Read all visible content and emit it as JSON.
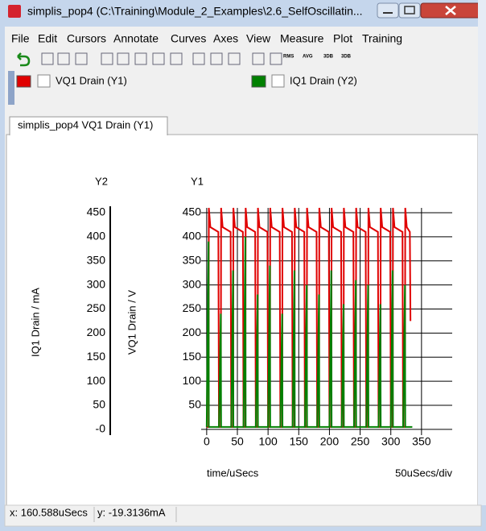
{
  "window": {
    "title": "simplis_pop4 (C:\\Training\\Module_2_Examples\\2.6_SelfOscillatin..."
  },
  "menu": [
    "File",
    "Edit",
    "Cursors",
    "Annotate",
    "Curves",
    "Axes",
    "View",
    "Measure",
    "Plot",
    "Training"
  ],
  "toolbar": [
    "RMS",
    "AVG",
    "3DB",
    "3DB"
  ],
  "tab": "simplis_pop4 VQ1 Drain (Y1)",
  "status": [
    "x: 160.588uSecs",
    "y: -19.3136mA"
  ],
  "chart_data": {
    "type": "line",
    "x_label": "time/uSecs",
    "x_scale_label": "50uSecs/div",
    "y_label": "VQ1 Drain / V",
    "y2_label": "IQ1 Drain / mA",
    "y_axis_name": "Y1",
    "y2_axis_name": "Y2",
    "x": [
      0,
      3,
      3.5,
      6,
      19,
      20,
      23,
      23.5,
      26,
      39,
      40,
      43,
      43.5,
      46,
      59,
      60,
      63,
      63.5,
      66,
      79,
      80,
      83,
      83.5,
      86,
      99,
      100,
      103,
      103.5,
      106,
      119,
      120,
      123,
      123.5,
      126,
      139,
      140,
      143,
      143.5,
      146,
      159,
      160,
      163,
      163.5,
      166,
      179,
      180,
      183,
      183.5,
      186,
      199,
      200,
      203,
      203.5,
      206,
      219,
      220,
      223,
      223.5,
      226,
      239,
      240,
      243,
      243.5,
      246,
      259,
      260,
      263,
      263.5,
      266,
      279,
      280,
      283,
      283.5,
      286,
      299,
      300,
      303,
      303.5,
      306,
      319,
      320,
      323,
      323.5,
      326,
      331,
      332,
      335
    ],
    "series": [
      {
        "name": "VQ1 Drain (Y1)",
        "color": "#e00000",
        "values": [
          5,
          5,
          460,
          420,
          410,
          5,
          5,
          460,
          420,
          410,
          5,
          5,
          460,
          420,
          410,
          5,
          5,
          460,
          420,
          410,
          5,
          5,
          460,
          420,
          410,
          5,
          5,
          460,
          420,
          410,
          5,
          5,
          460,
          420,
          410,
          5,
          5,
          460,
          420,
          410,
          5,
          5,
          460,
          420,
          410,
          5,
          5,
          460,
          420,
          410,
          5,
          5,
          460,
          420,
          410,
          5,
          5,
          460,
          420,
          410,
          5,
          5,
          460,
          420,
          410,
          5,
          5,
          460,
          420,
          410,
          5,
          5,
          460,
          420,
          410,
          5,
          5,
          460,
          420,
          410,
          5,
          5,
          460,
          420,
          410,
          225,
          null
        ]
      },
      {
        "name": "IQ1 Drain (Y2)",
        "color": "#008000",
        "axis": "y2",
        "values": [
          5,
          390,
          5,
          5,
          5,
          5,
          240,
          5,
          5,
          5,
          5,
          330,
          5,
          5,
          5,
          5,
          400,
          5,
          5,
          5,
          5,
          280,
          5,
          5,
          5,
          5,
          340,
          5,
          5,
          5,
          5,
          240,
          5,
          5,
          5,
          5,
          330,
          5,
          5,
          5,
          5,
          300,
          5,
          5,
          5,
          5,
          280,
          5,
          5,
          5,
          5,
          330,
          5,
          5,
          5,
          5,
          260,
          5,
          5,
          5,
          5,
          310,
          5,
          5,
          5,
          5,
          300,
          5,
          5,
          5,
          5,
          260,
          5,
          5,
          5,
          5,
          330,
          5,
          5,
          5,
          5,
          300,
          5,
          5,
          5,
          5,
          5
        ]
      }
    ],
    "xlim": [
      -9,
      400
    ],
    "xticks": [
      0,
      50,
      100,
      150,
      200,
      250,
      300,
      350
    ],
    "ylim": [
      -12,
      470
    ],
    "yticks": [
      50,
      100,
      150,
      200,
      250,
      300,
      350,
      400,
      450
    ],
    "y2lim": [
      -12,
      470
    ],
    "y2ticks": [
      {
        "value": 0,
        "label": "-0"
      },
      50,
      100,
      150,
      200,
      250,
      300,
      350,
      400,
      450
    ],
    "grid": true
  }
}
